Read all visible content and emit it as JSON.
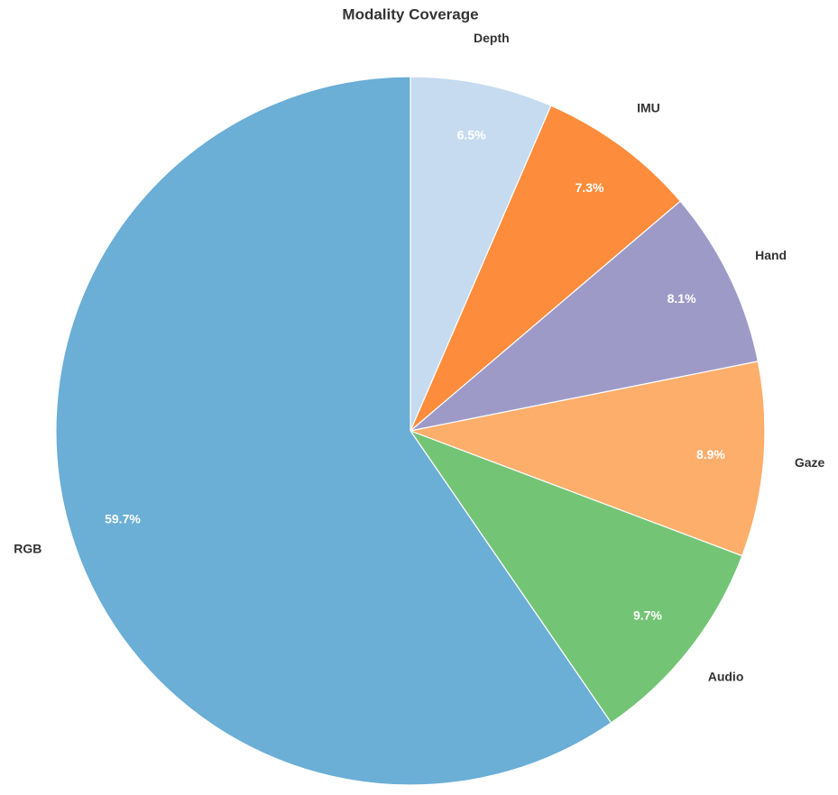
{
  "chart_data": {
    "type": "pie",
    "title": "Modality Coverage",
    "categories": [
      "Depth",
      "IMU",
      "Hand",
      "Gaze",
      "Audio",
      "RGB"
    ],
    "values": [
      6.5,
      7.3,
      8.1,
      8.9,
      9.7,
      59.7
    ],
    "value_labels": [
      "6.5%",
      "7.3%",
      "8.1%",
      "8.9%",
      "9.7%",
      "59.7%"
    ],
    "colors": [
      "#c6dbef",
      "#fd8d3c",
      "#9e9ac8",
      "#fdae6b",
      "#74c476",
      "#6baed6"
    ]
  }
}
